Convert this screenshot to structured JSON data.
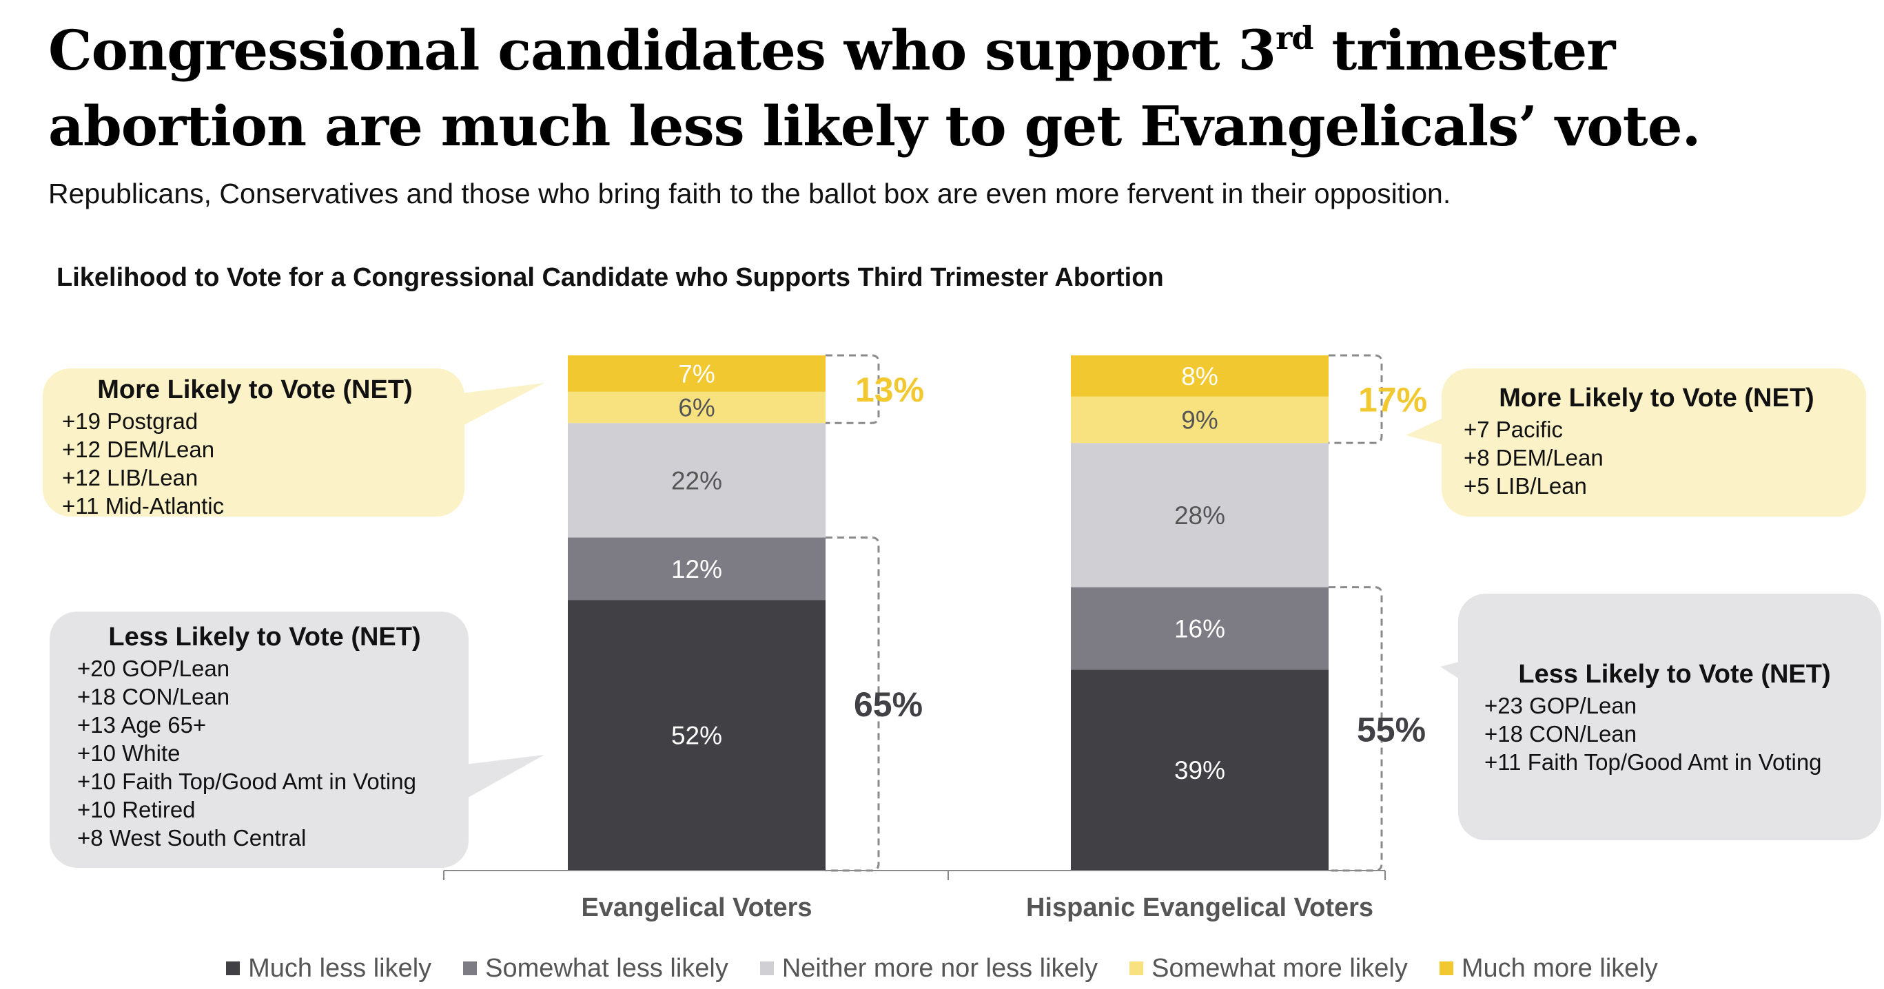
{
  "title": {
    "line1_pre": "Congressional candidates who support 3",
    "line1_sup": "rd",
    "line1_post": " trimester",
    "line2": "abortion are much less likely to get Evangelicals’ vote."
  },
  "subtitle": "Republicans, Conservatives and those who bring faith to the ballot box are even more fervent in their opposition.",
  "chart_data": {
    "type": "bar",
    "stacked": true,
    "title": "Likelihood to Vote for a Congressional Candidate who Supports Third Trimester Abortion",
    "categories": [
      "Evangelical Voters",
      "Hispanic Evangelical Voters"
    ],
    "series": [
      {
        "name": "Much less likely",
        "color": "#414045",
        "text_color": "#ffffff",
        "values": [
          52,
          39
        ]
      },
      {
        "name": "Somewhat less likely",
        "color": "#7d7c84",
        "text_color": "#ffffff",
        "values": [
          12,
          16
        ]
      },
      {
        "name": "Neither more nor less likely",
        "color": "#d0cfd4",
        "text_color": "#555555",
        "values": [
          22,
          28
        ]
      },
      {
        "name": "Somewhat more likely",
        "color": "#f7e27f",
        "text_color": "#555555",
        "values": [
          6,
          9
        ]
      },
      {
        "name": "Much more likely",
        "color": "#f2c830",
        "text_color": "#ffffff",
        "values": [
          7,
          8
        ]
      }
    ],
    "data_labels": [
      [
        "52%",
        "12%",
        "22%",
        "6%",
        "7%"
      ],
      [
        "39%",
        "16%",
        "28%",
        "9%",
        "8%"
      ]
    ],
    "totals": {
      "more_likely_net": [
        "13%",
        "17%"
      ],
      "less_likely_net": [
        "65%",
        "55%"
      ],
      "more_color": "#f2c830",
      "less_color": "#414045"
    },
    "legend_position": "bottom",
    "grid": false
  },
  "callouts": {
    "left_more": {
      "heading": "More Likely to Vote (NET)",
      "items": [
        "+19 Postgrad",
        "+12 DEM/Lean",
        "+12 LIB/Lean",
        "+11 Mid-Atlantic"
      ]
    },
    "left_less": {
      "heading": "Less Likely to Vote (NET)",
      "items": [
        "+20 GOP/Lean",
        "+18 CON/Lean",
        "+13 Age 65+",
        "+10 White",
        "+10 Faith Top/Good Amt in Voting",
        "+10 Retired",
        "+8 West South Central"
      ]
    },
    "right_more": {
      "heading": "More Likely to Vote (NET)",
      "items": [
        "+7 Pacific",
        "+8 DEM/Lean",
        "+5 LIB/Lean"
      ]
    },
    "right_less": {
      "heading": "Less Likely to Vote (NET)",
      "items": [
        "+23 GOP/Lean",
        "+18 CON/Lean",
        "+11 Faith Top/Good Amt in Voting"
      ]
    }
  }
}
